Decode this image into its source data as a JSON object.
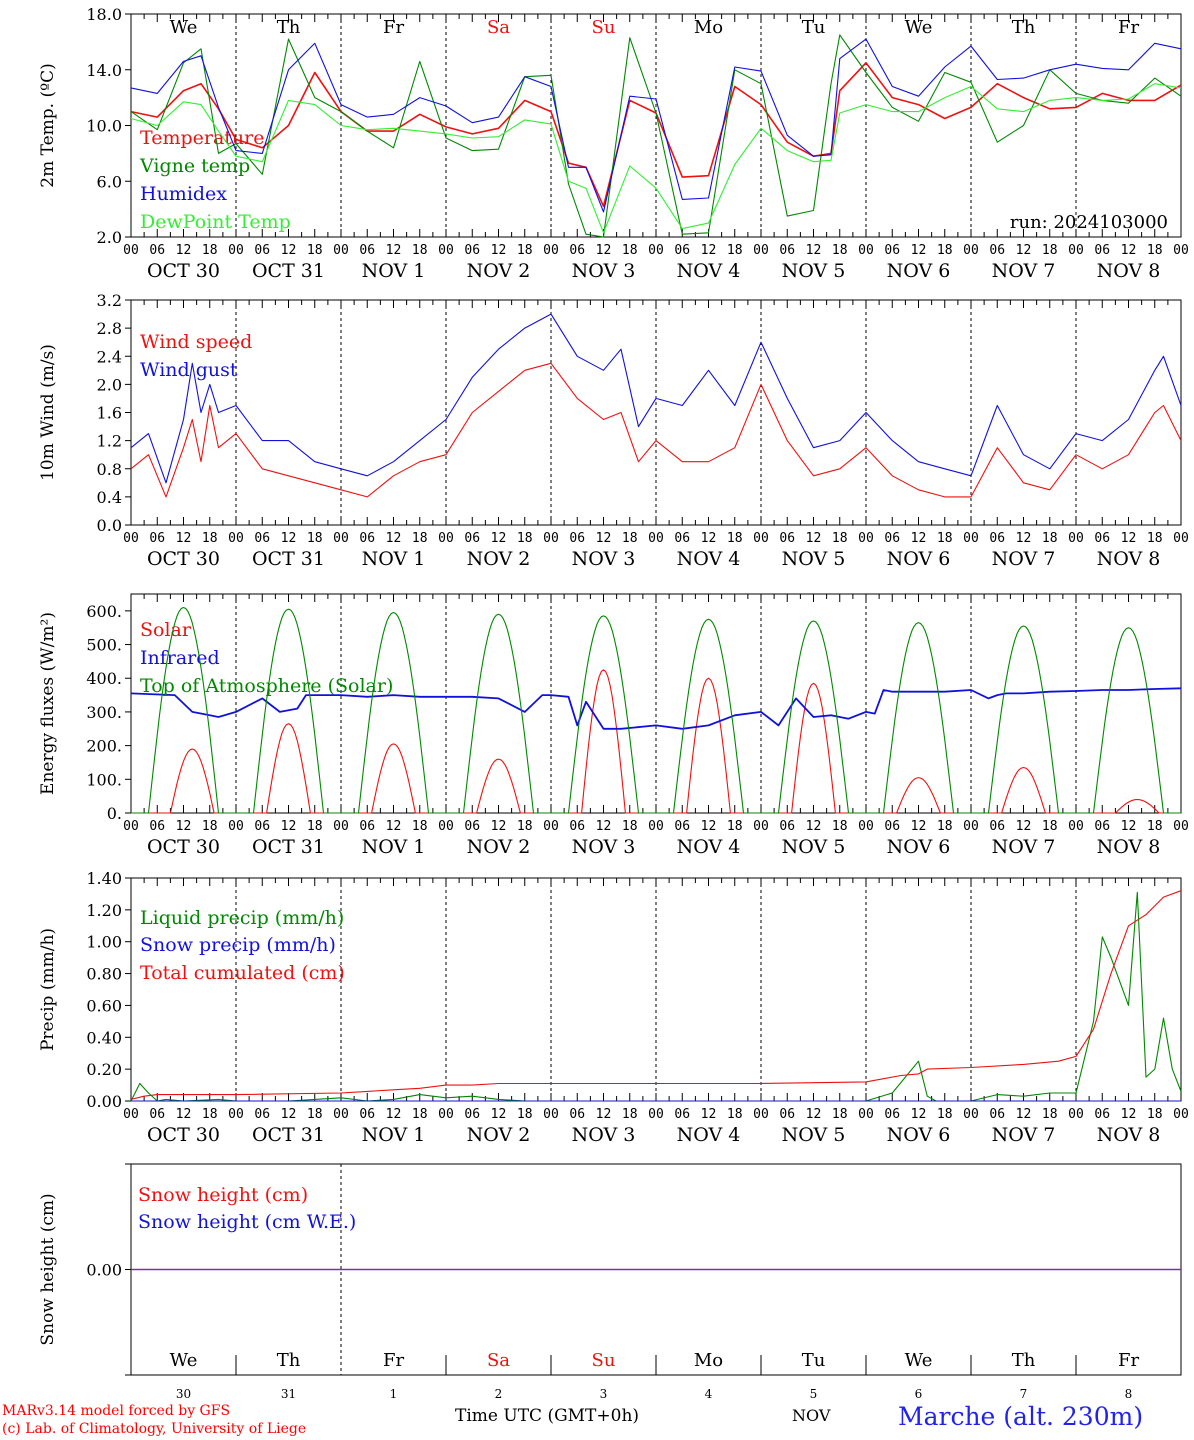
{
  "footer": {
    "credit_1": "MARv3.14 model forced by GFS",
    "credit_2": "(c) Lab. of Climatology, University of Liege",
    "time_label": "Time UTC (GMT+0h)",
    "month_label": "NOV",
    "station": "Marche (alt. 230m)"
  },
  "days": {
    "weekdays": [
      "We",
      "Th",
      "Fr",
      "Sa",
      "Su",
      "Mo",
      "Tu",
      "We",
      "Th",
      "Fr"
    ],
    "weekend_color": "#ee1111",
    "weekend_idx": [
      3,
      4
    ],
    "date_labels": [
      "OCT 30",
      "OCT 31",
      "NOV  1",
      "NOV  2",
      "NOV  3",
      "NOV  4",
      "NOV  5",
      "NOV  6",
      "NOV  7",
      "NOV  8"
    ],
    "day_numbers": [
      "30",
      "31",
      "1",
      "2",
      "3",
      "4",
      "5",
      "6",
      "7",
      "8"
    ],
    "hour_ticks": [
      "00",
      "06",
      "12",
      "18"
    ],
    "final_tick": "00"
  },
  "chart_data": [
    {
      "type": "line",
      "ylabel": "2m Temp. (ºC)",
      "ylim": [
        2,
        18
      ],
      "yticks": [
        "2.0",
        "6.0",
        "10.0",
        "14.0",
        "18.0"
      ],
      "annotation": "run: 2024103000",
      "x_unit": "hours since 2024-10-30 00 UTC",
      "series": [
        {
          "name": "Temperature",
          "color": "#ee1111",
          "x": [
            0,
            6,
            12,
            16,
            20,
            24,
            30,
            36,
            42,
            48,
            54,
            60,
            66,
            72,
            78,
            84,
            90,
            96,
            100,
            104,
            108,
            114,
            120,
            126,
            132,
            138,
            144,
            150,
            156,
            160,
            162,
            168,
            174,
            180,
            186,
            192,
            198,
            204,
            210,
            216,
            222,
            228,
            234,
            240
          ],
          "y": [
            11,
            10.6,
            12.5,
            13,
            11.2,
            9,
            8.4,
            10,
            13.8,
            11,
            9.6,
            9.6,
            10.8,
            9.9,
            9.4,
            9.8,
            11.8,
            11,
            7.3,
            7,
            4.2,
            11.8,
            10.9,
            6.3,
            6.4,
            12.8,
            11.5,
            8.8,
            7.8,
            8,
            12.5,
            14.5,
            12,
            11.5,
            10.5,
            11.3,
            13,
            12,
            11.2,
            11.3,
            12.3,
            11.8,
            11.8,
            12.9
          ]
        },
        {
          "name": "Vigne temp",
          "color": "#008800",
          "x": [
            0,
            6,
            12,
            16,
            20,
            24,
            30,
            36,
            42,
            48,
            54,
            60,
            66,
            72,
            78,
            84,
            90,
            96,
            100,
            104,
            108,
            114,
            120,
            126,
            132,
            138,
            144,
            150,
            156,
            160,
            162,
            168,
            174,
            180,
            186,
            192,
            198,
            204,
            210,
            216,
            222,
            228,
            234,
            240
          ],
          "y": [
            11,
            9.7,
            14.5,
            15.5,
            8,
            8.7,
            6.5,
            16.2,
            12,
            11,
            9.6,
            8.4,
            14.6,
            9.1,
            8.2,
            8.3,
            13.5,
            13.6,
            5.8,
            2.2,
            2,
            16.3,
            10.9,
            2.2,
            2.3,
            14,
            13,
            3.5,
            3.9,
            13,
            16.5,
            13.8,
            11.3,
            10.3,
            13.8,
            13.1,
            8.8,
            10,
            14,
            12.3,
            11.8,
            11.6,
            13.4,
            12.1
          ]
        },
        {
          "name": "Humidex",
          "color": "#1111dd",
          "x": [
            0,
            6,
            12,
            16,
            20,
            24,
            30,
            36,
            42,
            48,
            54,
            60,
            66,
            72,
            78,
            84,
            90,
            96,
            100,
            104,
            108,
            114,
            120,
            126,
            132,
            138,
            144,
            150,
            156,
            160,
            162,
            168,
            174,
            180,
            186,
            192,
            198,
            204,
            210,
            216,
            222,
            228,
            234,
            240
          ],
          "y": [
            12.7,
            12.3,
            14.6,
            15,
            11.3,
            8.2,
            8,
            14,
            15.9,
            11.5,
            10.6,
            10.8,
            12,
            11.4,
            10.2,
            10.6,
            13.5,
            12.8,
            7,
            7,
            3.8,
            12.1,
            11.9,
            4.7,
            4.8,
            14.2,
            13.9,
            9.3,
            7.8,
            7.9,
            14.8,
            16.2,
            12.8,
            12.1,
            14.2,
            15.7,
            13.3,
            13.4,
            14,
            14.4,
            14.1,
            14,
            15.9,
            15.5
          ]
        },
        {
          "name": "DewPoint Temp",
          "color": "#33ee33",
          "x": [
            0,
            6,
            12,
            16,
            20,
            24,
            30,
            36,
            42,
            48,
            54,
            60,
            66,
            72,
            78,
            84,
            90,
            96,
            100,
            104,
            108,
            114,
            120,
            126,
            132,
            138,
            144,
            150,
            156,
            160,
            162,
            168,
            174,
            180,
            186,
            192,
            198,
            204,
            210,
            216,
            222,
            228,
            234,
            240
          ],
          "y": [
            10.5,
            10,
            11.7,
            11.5,
            9.6,
            7.8,
            7.4,
            11.8,
            11.5,
            10,
            9.7,
            9.8,
            9.6,
            9.4,
            9.1,
            9.2,
            10.4,
            10.1,
            6,
            5.5,
            2.3,
            7.1,
            5.5,
            2.6,
            3,
            7.2,
            9.8,
            8.2,
            7.4,
            7.5,
            10.9,
            11.5,
            11,
            11,
            12,
            12.8,
            11.2,
            11,
            11.8,
            12,
            11.8,
            11.9,
            13,
            12.7
          ]
        }
      ]
    },
    {
      "type": "line",
      "ylabel": "10m Wind (m/s)",
      "ylim": [
        0,
        3.2
      ],
      "yticks": [
        "0.0",
        "0.4",
        "0.8",
        "1.2",
        "1.6",
        "2.0",
        "2.4",
        "2.8",
        "3.2"
      ],
      "x_unit": "hours since 2024-10-30 00 UTC",
      "series": [
        {
          "name": "Wind speed",
          "color": "#ee1111",
          "x": [
            0,
            4,
            8,
            12,
            14,
            16,
            18,
            20,
            24,
            30,
            36,
            42,
            48,
            54,
            60,
            66,
            72,
            78,
            84,
            90,
            96,
            102,
            108,
            112,
            116,
            120,
            126,
            132,
            138,
            144,
            150,
            156,
            162,
            168,
            174,
            180,
            186,
            192,
            198,
            204,
            210,
            216,
            222,
            228,
            234,
            236,
            240
          ],
          "y": [
            0.8,
            1,
            0.4,
            1.1,
            1.5,
            0.9,
            1.7,
            1.1,
            1.3,
            0.8,
            0.7,
            0.6,
            0.5,
            0.4,
            0.7,
            0.9,
            1,
            1.6,
            1.9,
            2.2,
            2.3,
            1.8,
            1.5,
            1.6,
            0.9,
            1.2,
            0.9,
            0.9,
            1.1,
            2,
            1.2,
            0.7,
            0.8,
            1.1,
            0.7,
            0.5,
            0.4,
            0.4,
            1.1,
            0.6,
            0.5,
            1,
            0.8,
            1,
            1.6,
            1.7,
            1.2
          ]
        },
        {
          "name": "Wind gust",
          "color": "#1111dd",
          "x": [
            0,
            4,
            8,
            12,
            14,
            16,
            18,
            20,
            24,
            30,
            36,
            42,
            48,
            54,
            60,
            66,
            72,
            78,
            84,
            90,
            96,
            102,
            108,
            112,
            116,
            120,
            126,
            132,
            138,
            144,
            150,
            156,
            162,
            168,
            174,
            180,
            186,
            192,
            198,
            204,
            210,
            216,
            222,
            228,
            234,
            236,
            240
          ],
          "y": [
            1.1,
            1.3,
            0.6,
            1.5,
            2.3,
            1.6,
            2,
            1.6,
            1.7,
            1.2,
            1.2,
            0.9,
            0.8,
            0.7,
            0.9,
            1.2,
            1.5,
            2.1,
            2.5,
            2.8,
            3,
            2.4,
            2.2,
            2.5,
            1.4,
            1.8,
            1.7,
            2.2,
            1.7,
            2.6,
            1.8,
            1.1,
            1.2,
            1.6,
            1.2,
            0.9,
            0.8,
            0.7,
            1.7,
            1,
            0.8,
            1.3,
            1.2,
            1.5,
            2.2,
            2.4,
            1.7
          ]
        }
      ]
    },
    {
      "type": "line",
      "ylabel": "Energy fluxes (W/m²)",
      "ylim": [
        0,
        650
      ],
      "yticks": [
        "0.",
        "100.",
        "200.",
        "300.",
        "400.",
        "500.",
        "600."
      ],
      "x_unit": "hours since 2024-10-30 00 UTC",
      "series": [
        {
          "name": "Solar",
          "color": "#ee1111",
          "peaks": [
            190,
            265,
            205,
            160,
            425,
            400,
            385,
            105,
            135,
            40
          ],
          "peak_hours": [
            14,
            12,
            12,
            12,
            12,
            12,
            12,
            12,
            12,
            14
          ],
          "halfwidth": 5
        },
        {
          "name": "Infrared",
          "color": "#1111dd",
          "x": [
            0,
            10,
            14,
            18,
            20,
            24,
            30,
            34,
            38,
            40,
            48,
            54,
            60,
            66,
            72,
            78,
            84,
            90,
            94,
            96,
            100,
            102,
            104,
            108,
            112,
            120,
            126,
            132,
            138,
            144,
            148,
            152,
            156,
            160,
            164,
            168,
            170,
            172,
            174,
            180,
            186,
            192,
            196,
            198,
            200,
            204,
            210,
            216,
            222,
            228,
            234,
            240
          ],
          "y": [
            355,
            350,
            300,
            290,
            285,
            300,
            340,
            300,
            310,
            350,
            350,
            345,
            350,
            345,
            345,
            345,
            340,
            300,
            350,
            350,
            345,
            260,
            330,
            250,
            250,
            260,
            250,
            260,
            290,
            300,
            260,
            340,
            285,
            290,
            280,
            300,
            295,
            365,
            360,
            360,
            360,
            365,
            340,
            350,
            355,
            355,
            360,
            362,
            365,
            365,
            368,
            370
          ]
        },
        {
          "name": "Top of Atmosphere (Solar)",
          "color": "#008800",
          "peaks": [
            610,
            605,
            595,
            590,
            585,
            575,
            570,
            565,
            555,
            550
          ],
          "peak_hours": [
            12,
            12,
            12,
            12,
            12,
            12,
            12,
            12,
            12,
            12
          ],
          "halfwidth": 8
        }
      ]
    },
    {
      "type": "line",
      "ylabel": "Precip (mm/h)",
      "ylim": [
        0,
        1.4
      ],
      "yticks": [
        "0.00",
        "0.20",
        "0.40",
        "0.60",
        "0.80",
        "1.00",
        "1.20",
        "1.40"
      ],
      "x_unit": "hours since 2024-10-30 00 UTC",
      "series": [
        {
          "name": "Liquid precip (mm/h)",
          "color": "#008800",
          "x": [
            0,
            2,
            4,
            6,
            8,
            12,
            20,
            24,
            30,
            36,
            42,
            48,
            54,
            60,
            66,
            72,
            78,
            84,
            90,
            96,
            120,
            144,
            168,
            174,
            180,
            182,
            184,
            188,
            192,
            198,
            204,
            210,
            216,
            220,
            222,
            224,
            228,
            230,
            232,
            234,
            236,
            238,
            240
          ],
          "y": [
            0,
            0.11,
            0.05,
            0,
            0.01,
            0,
            0.01,
            0,
            0,
            0,
            0.01,
            0.02,
            0,
            0.01,
            0.04,
            0.02,
            0.03,
            0.01,
            0,
            0,
            0,
            0,
            0,
            0.05,
            0.25,
            0.03,
            0,
            0,
            0,
            0.04,
            0.03,
            0.05,
            0.05,
            0.5,
            1.03,
            0.9,
            0.6,
            1.31,
            0.15,
            0.2,
            0.52,
            0.2,
            0.06
          ]
        },
        {
          "name": "Snow precip (mm/h)",
          "color": "#1111dd",
          "x": [
            0,
            240
          ],
          "y": [
            0,
            0
          ]
        },
        {
          "name": "Total cumulated (cm)",
          "color": "#ee1111",
          "x": [
            0,
            3,
            6,
            24,
            48,
            54,
            60,
            66,
            72,
            78,
            84,
            96,
            120,
            144,
            168,
            172,
            176,
            180,
            182,
            192,
            204,
            212,
            216,
            220,
            224,
            228,
            232,
            236,
            240
          ],
          "y": [
            0.01,
            0.03,
            0.04,
            0.04,
            0.05,
            0.06,
            0.07,
            0.08,
            0.1,
            0.1,
            0.11,
            0.11,
            0.11,
            0.11,
            0.12,
            0.14,
            0.16,
            0.17,
            0.2,
            0.21,
            0.23,
            0.25,
            0.28,
            0.45,
            0.8,
            1.1,
            1.17,
            1.28,
            1.32
          ]
        }
      ]
    },
    {
      "type": "line",
      "ylabel": "Snow height (cm)",
      "ylim": [
        -1,
        1
      ],
      "yticks": [
        "0.00"
      ],
      "x_unit": "hours since 2024-10-30 00 UTC",
      "series": [
        {
          "name": "Snow height (cm)",
          "color": "#ee1111",
          "x": [
            0,
            240
          ],
          "y": [
            0,
            0
          ]
        },
        {
          "name": "Snow height (cm W.E.)",
          "color": "#1111dd",
          "x": [
            0,
            240
          ],
          "y": [
            0,
            0
          ]
        }
      ]
    }
  ]
}
